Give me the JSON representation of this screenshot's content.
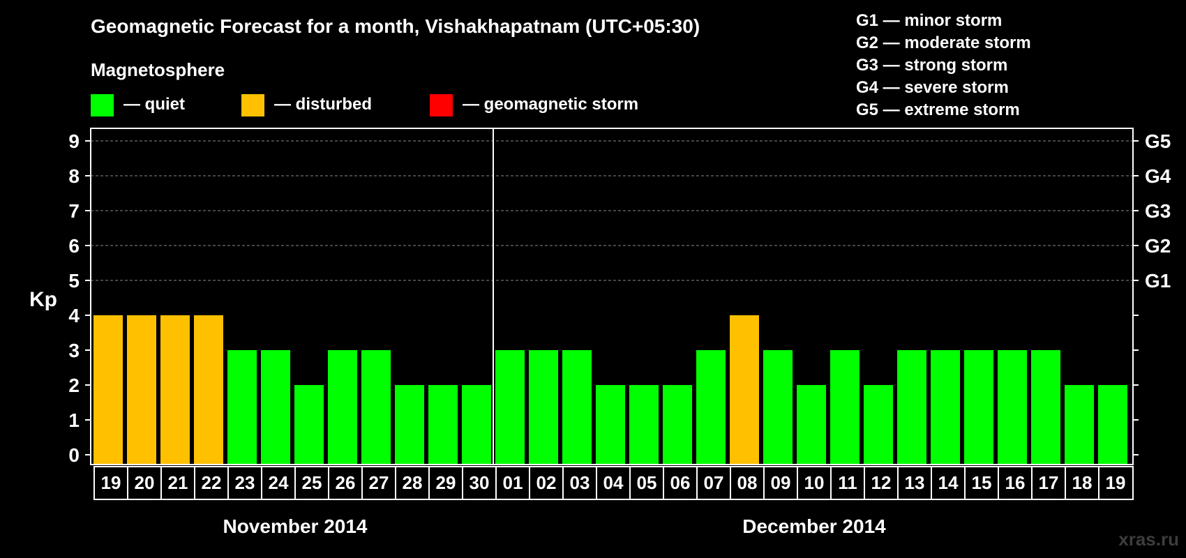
{
  "chart_data": {
    "type": "bar",
    "title": "Geomagnetic Forecast for a month, Vishakhapatnam (UTC+05:30)",
    "subtitle": "Magnetosphere",
    "ylabel": "Kp",
    "ylim": [
      0,
      9
    ],
    "yticks": [
      "0",
      "1",
      "2",
      "3",
      "4",
      "5",
      "6",
      "7",
      "8",
      "9"
    ],
    "grid": "dashed at Kp 5-9",
    "legend": {
      "quiet": {
        "label": "— quiet",
        "color": "#00ff00"
      },
      "disturbed": {
        "label": "— disturbed",
        "color": "#ffc000"
      },
      "storm": {
        "label": "— geomagnetic storm",
        "color": "#ff0000"
      }
    },
    "storm_scale": [
      {
        "label": "G1 — minor storm",
        "kp": 5,
        "tick": "G1"
      },
      {
        "label": "G2 — moderate storm",
        "kp": 6,
        "tick": "G2"
      },
      {
        "label": "G3 — strong storm",
        "kp": 7,
        "tick": "G3"
      },
      {
        "label": "G4 — severe storm",
        "kp": 8,
        "tick": "G4"
      },
      {
        "label": "G5 — extreme storm",
        "kp": 9,
        "tick": "G5"
      }
    ],
    "months": [
      {
        "label": "November 2014",
        "first_index": 0,
        "count": 12
      },
      {
        "label": "December 2014",
        "first_index": 12,
        "count": 19
      }
    ],
    "categories": [
      "19",
      "20",
      "21",
      "22",
      "23",
      "24",
      "25",
      "26",
      "27",
      "28",
      "29",
      "30",
      "01",
      "02",
      "03",
      "04",
      "05",
      "06",
      "07",
      "08",
      "09",
      "10",
      "11",
      "12",
      "13",
      "14",
      "15",
      "16",
      "17",
      "18",
      "19"
    ],
    "values": [
      4,
      4,
      4,
      4,
      3,
      3,
      2,
      3,
      3,
      2,
      2,
      2,
      3,
      3,
      3,
      2,
      2,
      2,
      3,
      4,
      3,
      2,
      3,
      2,
      3,
      3,
      3,
      3,
      3,
      2,
      2
    ],
    "status": [
      "disturbed",
      "disturbed",
      "disturbed",
      "disturbed",
      "quiet",
      "quiet",
      "quiet",
      "quiet",
      "quiet",
      "quiet",
      "quiet",
      "quiet",
      "quiet",
      "quiet",
      "quiet",
      "quiet",
      "quiet",
      "quiet",
      "quiet",
      "disturbed",
      "quiet",
      "quiet",
      "quiet",
      "quiet",
      "quiet",
      "quiet",
      "quiet",
      "quiet",
      "quiet",
      "quiet",
      "quiet"
    ]
  },
  "watermark": "xras.ru"
}
